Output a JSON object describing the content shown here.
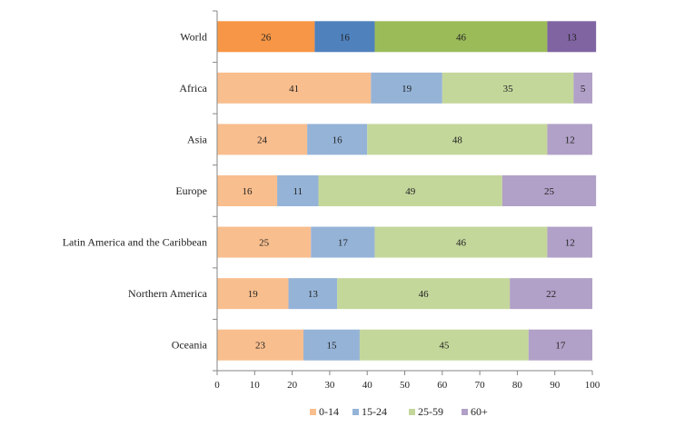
{
  "chart_data": {
    "type": "bar",
    "orientation": "horizontal",
    "stacked": true,
    "categories": [
      "World",
      "Africa",
      "Asia",
      "Europe",
      "Latin America and the Caribbean",
      "Northern America",
      "Oceania"
    ],
    "series": [
      {
        "name": "0-14",
        "values": [
          26,
          41,
          24,
          16,
          25,
          19,
          23
        ],
        "labels": [
          "26",
          "41",
          "24",
          "16",
          "25",
          "19",
          "23"
        ],
        "color": "#F9BE8E",
        "highlight_color": "#F79646"
      },
      {
        "name": "15-24",
        "values": [
          16,
          19,
          16,
          11,
          17,
          13,
          15
        ],
        "labels": [
          "16",
          "19",
          "16",
          "11",
          "17",
          "13",
          "15"
        ],
        "color": "#95B3D7",
        "highlight_color": "#4F81BD"
      },
      {
        "name": "25-59",
        "values": [
          46,
          35,
          48,
          49,
          46,
          46,
          45
        ],
        "labels": [
          "46",
          "35",
          "48",
          "49",
          "46",
          "46",
          "45"
        ],
        "color": "#C4D79B",
        "highlight_color": "#9BBB59"
      },
      {
        "name": "60+",
        "values": [
          13,
          5,
          12,
          25,
          12,
          22,
          17
        ],
        "labels": [
          "13",
          "5",
          "12",
          "25",
          "12",
          "22",
          "17"
        ],
        "color": "#B1A0C7",
        "highlight_color": "#8064A2"
      }
    ],
    "highlight_category": "World",
    "xlim": [
      0,
      100
    ],
    "xticks": [
      0,
      10,
      20,
      30,
      40,
      50,
      60,
      70,
      80,
      90,
      100
    ],
    "xtick_labels": [
      "0",
      "10",
      "20",
      "30",
      "40",
      "50",
      "60",
      "70",
      "80",
      "90",
      "100"
    ],
    "title": "",
    "xlabel": "",
    "ylabel": "",
    "grid": false,
    "legend_position": "bottom-center"
  }
}
